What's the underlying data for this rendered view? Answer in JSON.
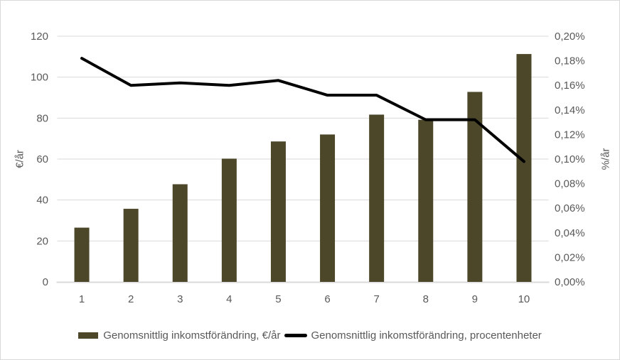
{
  "colors": {
    "bar": "#4d472a",
    "line": "#000000",
    "text": "#595959",
    "gridline": "#d9d9d9",
    "axis_line": "#d9d9d9",
    "background": "#ffffff",
    "border": "#d9d9d9"
  },
  "chart_data": {
    "type": "combo-bar-line",
    "title": "",
    "categories": [
      "1",
      "2",
      "3",
      "4",
      "5",
      "6",
      "7",
      "8",
      "9",
      "10"
    ],
    "series": [
      {
        "name": "Genomsnittlig inkomstförändring, €/år",
        "type": "bar",
        "axis": "left",
        "color": "#4d472a",
        "values": [
          26.5,
          35.7,
          47.7,
          60.2,
          68.6,
          72.0,
          81.7,
          79.2,
          92.8,
          111.3
        ]
      },
      {
        "name": "Genomsnittlig inkomstförändring, procentenheter",
        "type": "line",
        "axis": "right",
        "color": "#000000",
        "values": [
          0.182,
          0.16,
          0.162,
          0.16,
          0.164,
          0.152,
          0.152,
          0.132,
          0.132,
          0.098
        ]
      }
    ],
    "left_axis": {
      "title": "€/år",
      "min": 0,
      "max": 120,
      "step": 20,
      "tick_labels": [
        "0",
        "20",
        "40",
        "60",
        "80",
        "100",
        "120"
      ]
    },
    "right_axis": {
      "title": "%/år",
      "min": 0,
      "max": 0.2,
      "step": 0.02,
      "tick_labels": [
        "0,00%",
        "0,02%",
        "0,04%",
        "0,06%",
        "0,08%",
        "0,10%",
        "0,12%",
        "0,14%",
        "0,16%",
        "0,18%",
        "0,20%"
      ]
    },
    "grid": "horizontal-left-axis-ticks",
    "legend_position": "bottom"
  }
}
